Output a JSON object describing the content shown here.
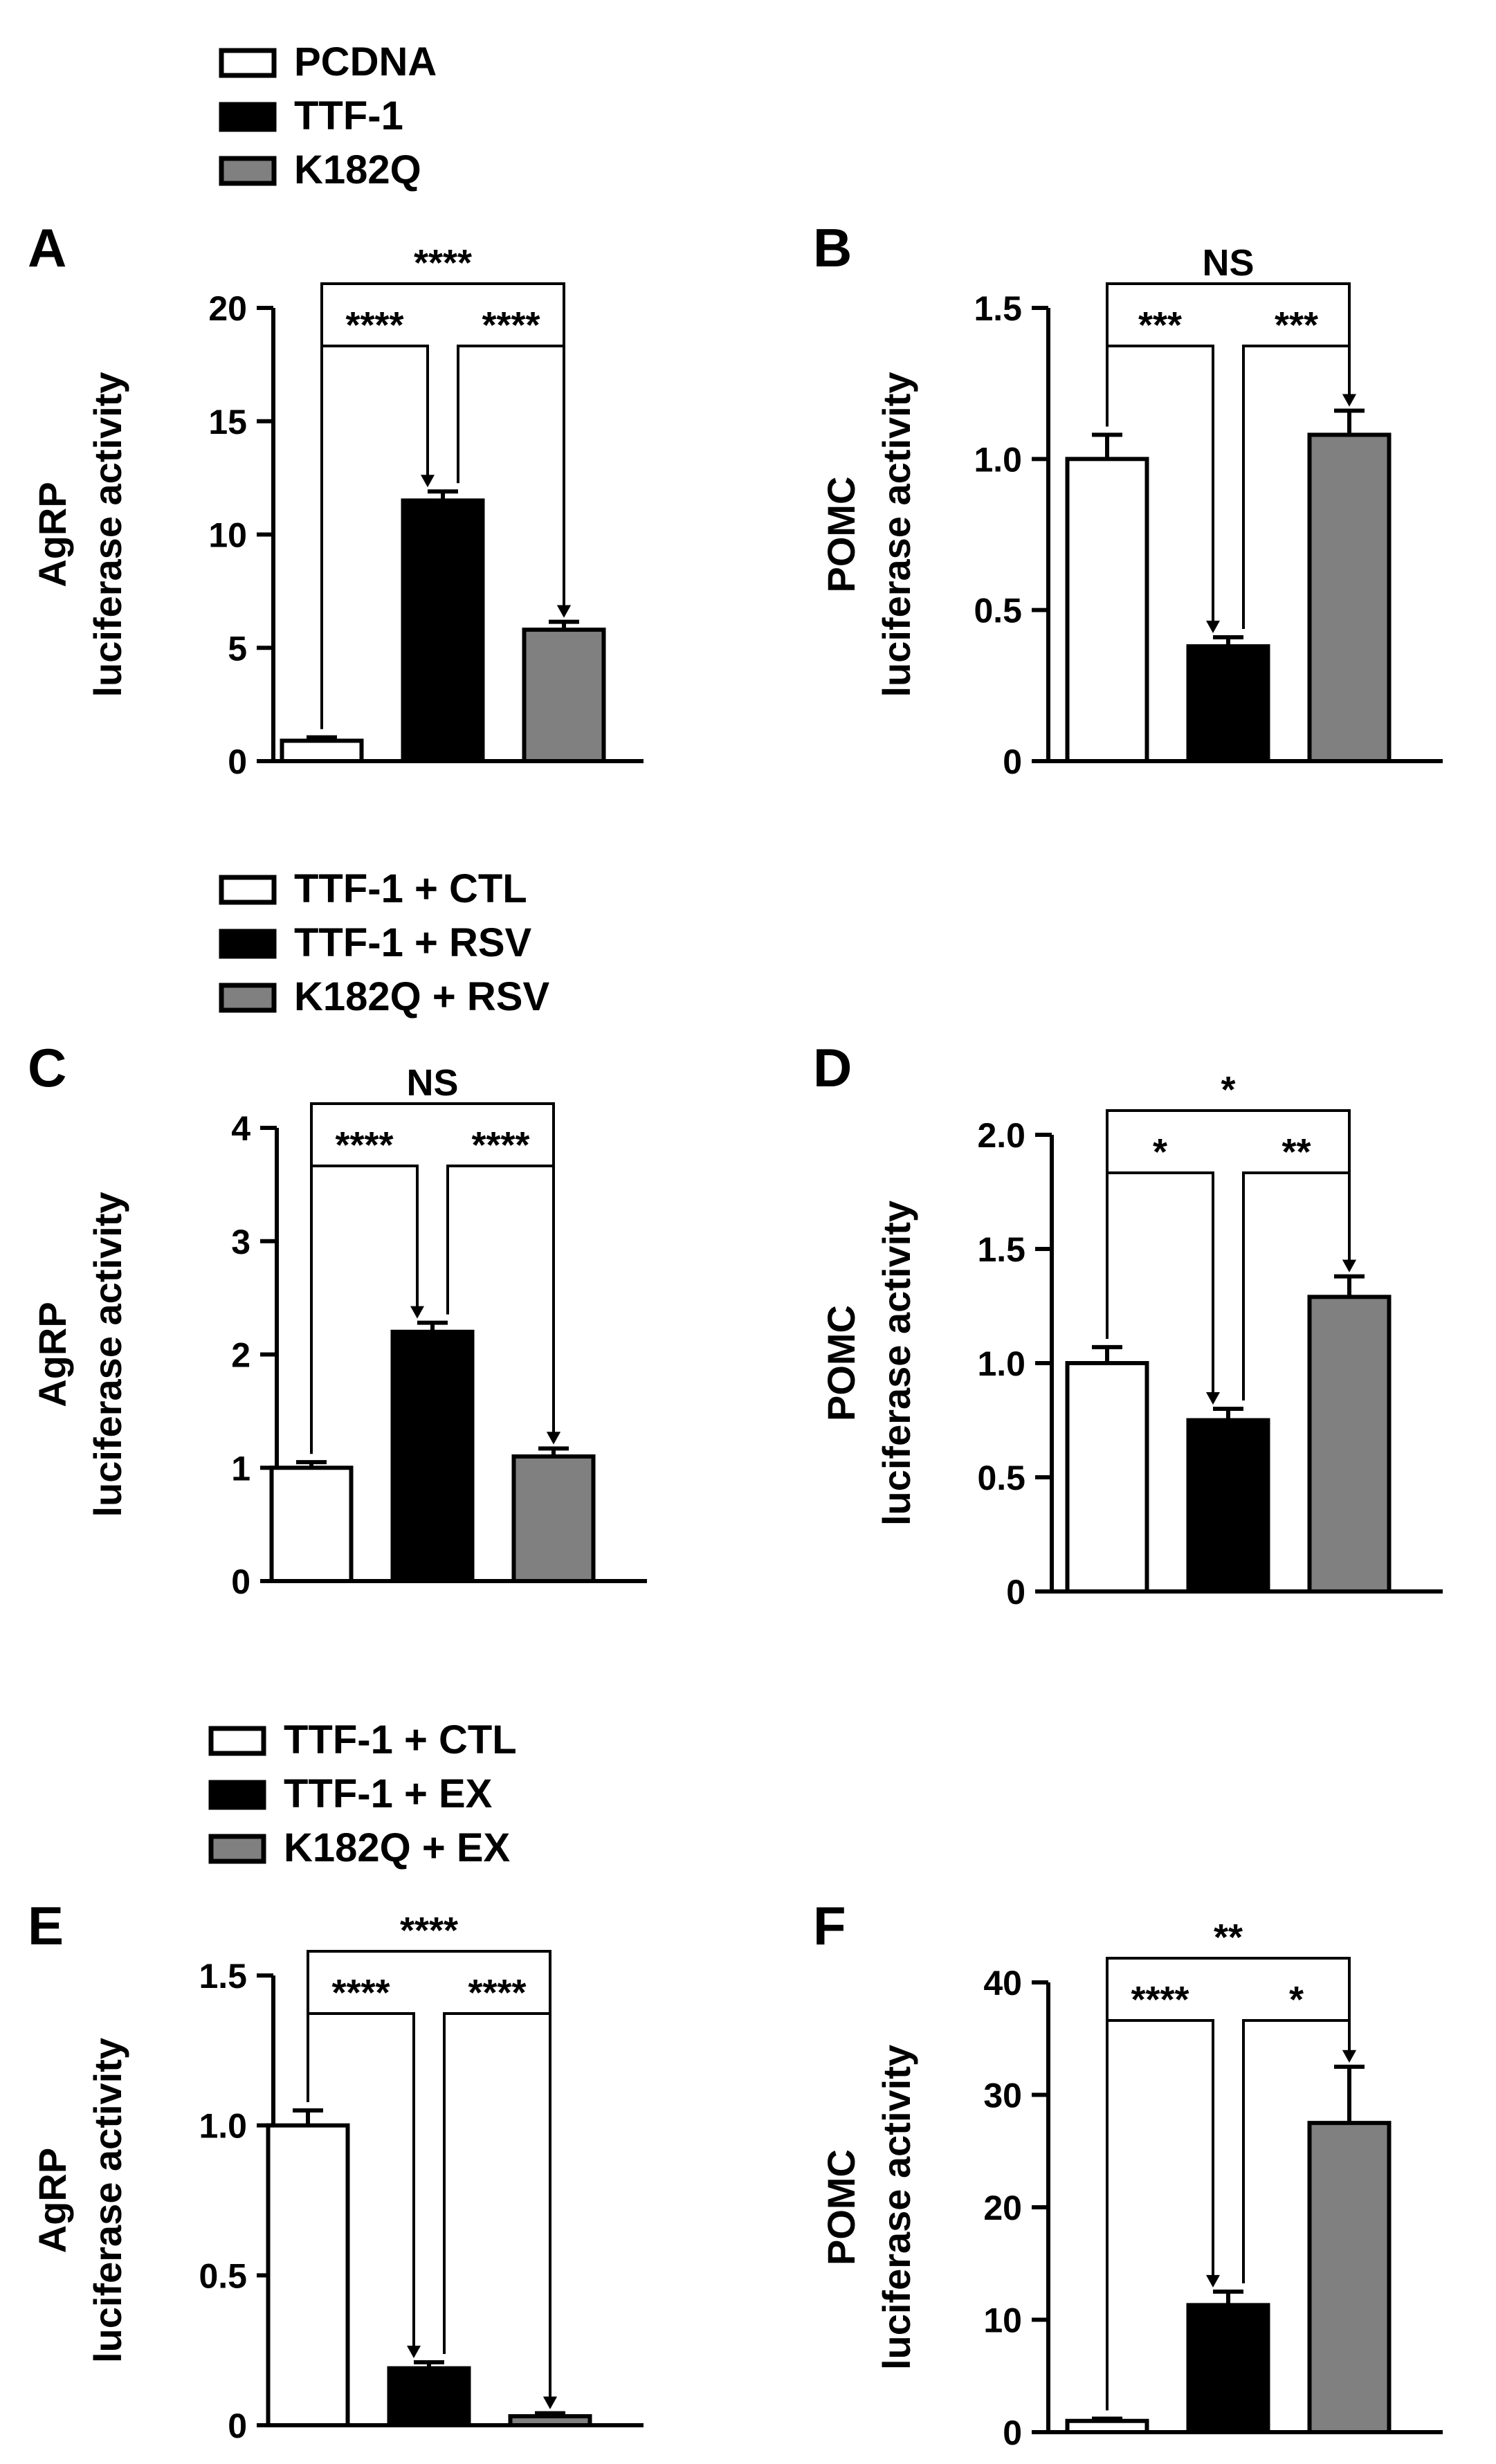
{
  "figure": {
    "description_note": ""
  },
  "legends": [
    {
      "items": [
        {
          "label": "PCDNA",
          "color": "#ffffff"
        },
        {
          "label": "TTF-1",
          "color": "#000000"
        },
        {
          "label": "K182Q",
          "color": "#808080"
        }
      ]
    },
    {
      "items": [
        {
          "label": "TTF-1 + CTL",
          "color": "#ffffff"
        },
        {
          "label": "TTF-1 + RSV",
          "color": "#000000"
        },
        {
          "label": "K182Q + RSV",
          "color": "#808080"
        }
      ]
    },
    {
      "items": [
        {
          "label": "TTF-1 + CTL",
          "color": "#ffffff"
        },
        {
          "label": "TTF-1 + EX",
          "color": "#000000"
        },
        {
          "label": "K182Q + EX",
          "color": "#808080"
        }
      ]
    }
  ],
  "chart_data": [
    {
      "panel": "A",
      "type": "bar",
      "ylabel_line1": "AgRP",
      "ylabel_line2": "luciferase activity",
      "categories": [
        "PCDNA",
        "TTF-1",
        "K182Q"
      ],
      "values": [
        0.9,
        11.5,
        5.8
      ],
      "errors": [
        0.15,
        0.4,
        0.35
      ],
      "colors": [
        "#ffffff",
        "#000000",
        "#808080"
      ],
      "ylim": [
        0,
        20
      ],
      "ticks": [
        0,
        5,
        10,
        15,
        20
      ],
      "tick_labels": [
        "0",
        "5",
        "10",
        "15",
        "20"
      ],
      "sig": [
        {
          "from": 0,
          "to": 1,
          "label": "****",
          "level": 1
        },
        {
          "from": 1,
          "to": 2,
          "label": "****",
          "level": 1
        },
        {
          "from": 0,
          "to": 2,
          "label": "****",
          "level": 2
        }
      ]
    },
    {
      "panel": "B",
      "type": "bar",
      "ylabel_line1": "POMC",
      "ylabel_line2": "luciferase activity",
      "categories": [
        "PCDNA",
        "TTF-1",
        "K182Q"
      ],
      "values": [
        1.0,
        0.38,
        1.08
      ],
      "errors": [
        0.08,
        0.03,
        0.08
      ],
      "colors": [
        "#ffffff",
        "#000000",
        "#808080"
      ],
      "ylim": [
        0,
        1.5
      ],
      "ticks": [
        0,
        0.5,
        1.0,
        1.5
      ],
      "tick_labels": [
        "0",
        "0.5",
        "1.0",
        "1.5"
      ],
      "sig": [
        {
          "from": 0,
          "to": 1,
          "label": "***",
          "level": 1
        },
        {
          "from": 1,
          "to": 2,
          "label": "***",
          "level": 1
        },
        {
          "from": 0,
          "to": 2,
          "label": "NS",
          "level": 2
        }
      ]
    },
    {
      "panel": "C",
      "type": "bar",
      "ylabel_line1": "AgRP",
      "ylabel_line2": "luciferase activity",
      "categories": [
        "TTF-1 + CTL",
        "TTF-1 + RSV",
        "K182Q + RSV"
      ],
      "values": [
        1.0,
        2.2,
        1.1
      ],
      "errors": [
        0.05,
        0.08,
        0.07
      ],
      "colors": [
        "#ffffff",
        "#000000",
        "#808080"
      ],
      "ylim": [
        0,
        4
      ],
      "ticks": [
        0,
        1,
        2,
        3,
        4
      ],
      "tick_labels": [
        "0",
        "1",
        "2",
        "3",
        "4"
      ],
      "sig": [
        {
          "from": 0,
          "to": 1,
          "label": "****",
          "level": 1
        },
        {
          "from": 1,
          "to": 2,
          "label": "****",
          "level": 1
        },
        {
          "from": 0,
          "to": 2,
          "label": "NS",
          "level": 2
        }
      ]
    },
    {
      "panel": "D",
      "type": "bar",
      "ylabel_line1": "POMC",
      "ylabel_line2": "luciferase activity",
      "categories": [
        "TTF-1 + CTL",
        "TTF-1 + RSV",
        "K182Q + RSV"
      ],
      "values": [
        1.0,
        0.75,
        1.29
      ],
      "errors": [
        0.07,
        0.05,
        0.09
      ],
      "colors": [
        "#ffffff",
        "#000000",
        "#808080"
      ],
      "ylim": [
        0,
        2.0
      ],
      "ticks": [
        0,
        0.5,
        1.0,
        1.5,
        2.0
      ],
      "tick_labels": [
        "0",
        "0.5",
        "1.0",
        "1.5",
        "2.0"
      ],
      "sig": [
        {
          "from": 0,
          "to": 1,
          "label": "*",
          "level": 1
        },
        {
          "from": 1,
          "to": 2,
          "label": "**",
          "level": 1
        },
        {
          "from": 0,
          "to": 2,
          "label": "*",
          "level": 2
        }
      ]
    },
    {
      "panel": "E",
      "type": "bar",
      "ylabel_line1": "AgRP",
      "ylabel_line2": "luciferase activity",
      "categories": [
        "TTF-1 + CTL",
        "TTF-1 + EX",
        "K182Q + EX"
      ],
      "values": [
        1.0,
        0.19,
        0.03
      ],
      "errors": [
        0.05,
        0.02,
        0.01
      ],
      "colors": [
        "#ffffff",
        "#000000",
        "#808080"
      ],
      "ylim": [
        0,
        1.5
      ],
      "ticks": [
        0,
        0.5,
        1.0,
        1.5
      ],
      "tick_labels": [
        "0",
        "0.5",
        "1.0",
        "1.5"
      ],
      "sig": [
        {
          "from": 0,
          "to": 1,
          "label": "****",
          "level": 1
        },
        {
          "from": 1,
          "to": 2,
          "label": "****",
          "level": 1
        },
        {
          "from": 0,
          "to": 2,
          "label": "****",
          "level": 2
        }
      ]
    },
    {
      "panel": "F",
      "type": "bar",
      "ylabel_line1": "POMC",
      "ylabel_line2": "luciferase activity",
      "categories": [
        "TTF-1 + CTL",
        "TTF-1 + EX",
        "K182Q + EX"
      ],
      "values": [
        1.0,
        11.3,
        27.5
      ],
      "errors": [
        0.2,
        1.2,
        5.0
      ],
      "colors": [
        "#ffffff",
        "#000000",
        "#808080"
      ],
      "ylim": [
        0,
        40
      ],
      "ticks": [
        0,
        10,
        20,
        30,
        40
      ],
      "tick_labels": [
        "0",
        "10",
        "20",
        "30",
        "40"
      ],
      "sig": [
        {
          "from": 0,
          "to": 1,
          "label": "****",
          "level": 1
        },
        {
          "from": 1,
          "to": 2,
          "label": "*",
          "level": 1
        },
        {
          "from": 0,
          "to": 2,
          "label": "**",
          "level": 2
        }
      ]
    }
  ]
}
